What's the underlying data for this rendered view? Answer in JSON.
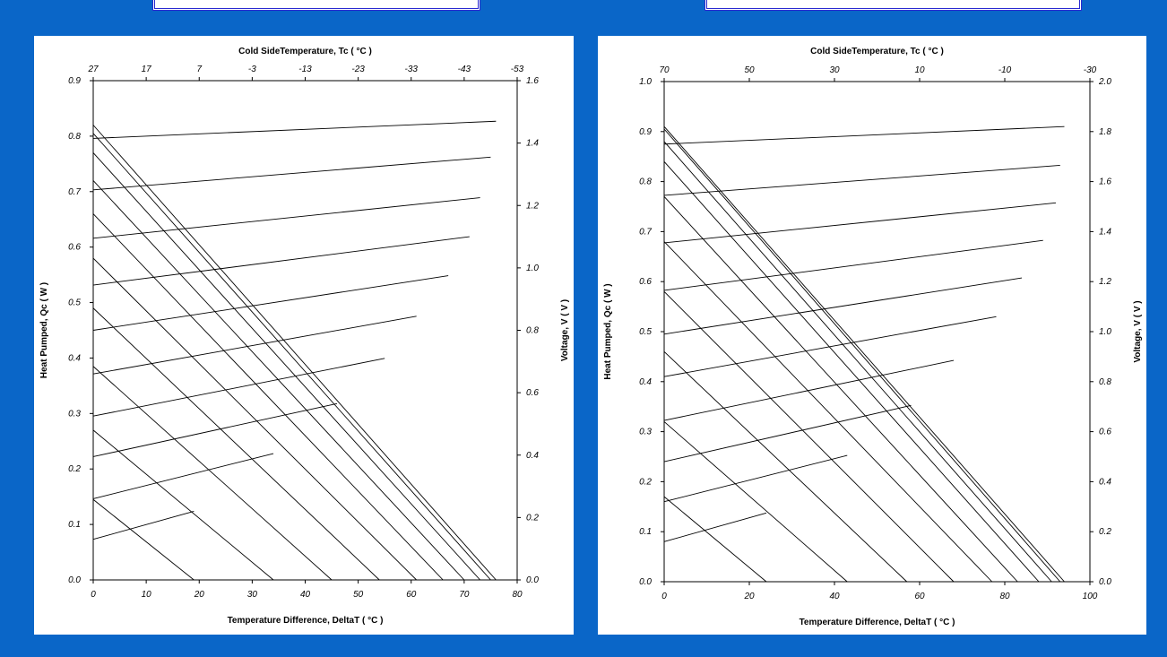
{
  "chart_data": [
    {
      "type": "line",
      "xlabel": "Temperature Difference, DeltaT ( °C )",
      "x2label": "Cold SideTemperature, Tc ( °C )",
      "ylabel": "Heat Pumped, Qc ( W )",
      "y2label": "Voltage, V ( V )",
      "xlim": [
        0,
        80
      ],
      "ylim": [
        0,
        0.9
      ],
      "y2lim": [
        0,
        1.6
      ],
      "x_ticks": [
        "0",
        "10",
        "20",
        "30",
        "40",
        "50",
        "60",
        "70",
        "80"
      ],
      "y_ticks": [
        "0.0",
        "0.1",
        "0.2",
        "0.3",
        "0.4",
        "0.5",
        "0.6",
        "0.7",
        "0.8",
        "0.9"
      ],
      "y2_ticks": [
        "0.0",
        "0.2",
        "0.4",
        "0.6",
        "0.8",
        "1.0",
        "1.2",
        "1.4",
        "1.6"
      ],
      "x2_ticks": [
        "27",
        "17",
        "7",
        "-3",
        "-13",
        "-23",
        "-33",
        "-43",
        "-53"
      ],
      "heat_lines": [
        {
          "q0": 0.145,
          "dt_max": 19
        },
        {
          "q0": 0.27,
          "dt_max": 34
        },
        {
          "q0": 0.385,
          "dt_max": 45
        },
        {
          "q0": 0.49,
          "dt_max": 54
        },
        {
          "q0": 0.58,
          "dt_max": 61
        },
        {
          "q0": 0.66,
          "dt_max": 66
        },
        {
          "q0": 0.72,
          "dt_max": 70
        },
        {
          "q0": 0.77,
          "dt_max": 73
        },
        {
          "q0": 0.805,
          "dt_max": 75
        },
        {
          "q0": 0.82,
          "dt_max": 76
        }
      ],
      "voltage_lines": [
        {
          "v0": 0.13,
          "x1": 19,
          "v1": 0.22
        },
        {
          "v0": 0.26,
          "x1": 34,
          "v1": 0.405
        },
        {
          "v0": 0.395,
          "x1": 46,
          "v1": 0.565
        },
        {
          "v0": 0.525,
          "x1": 55,
          "v1": 0.71
        },
        {
          "v0": 0.66,
          "x1": 61,
          "v1": 0.845
        },
        {
          "v0": 0.8,
          "x1": 67,
          "v1": 0.975
        },
        {
          "v0": 0.945,
          "x1": 71,
          "v1": 1.1
        },
        {
          "v0": 1.095,
          "x1": 73,
          "v1": 1.225
        },
        {
          "v0": 1.25,
          "x1": 75,
          "v1": 1.355
        },
        {
          "v0": 1.415,
          "x1": 76,
          "v1": 1.47
        }
      ]
    },
    {
      "type": "line",
      "xlabel": "Temperature Difference, DeltaT ( °C )",
      "x2label": "Cold SideTemperature, Tc ( °C )",
      "ylabel": "Heat Pumped, Qc ( W )",
      "y2label": "Voltage, V ( V )",
      "xlim": [
        0,
        100
      ],
      "ylim": [
        0,
        1.0
      ],
      "y2lim": [
        0,
        2.0
      ],
      "x_ticks": [
        "0",
        "20",
        "40",
        "60",
        "80",
        "100"
      ],
      "y_ticks": [
        "0.0",
        "0.1",
        "0.2",
        "0.3",
        "0.4",
        "0.5",
        "0.6",
        "0.7",
        "0.8",
        "0.9",
        "1.0"
      ],
      "y2_ticks": [
        "0.0",
        "0.2",
        "0.4",
        "0.6",
        "0.8",
        "1.0",
        "1.2",
        "1.4",
        "1.6",
        "1.8",
        "2.0"
      ],
      "x2_ticks": [
        "70",
        "50",
        "30",
        "10",
        "-10",
        "-30"
      ],
      "heat_lines": [
        {
          "q0": 0.17,
          "dt_max": 24
        },
        {
          "q0": 0.32,
          "dt_max": 43
        },
        {
          "q0": 0.46,
          "dt_max": 57
        },
        {
          "q0": 0.58,
          "dt_max": 68
        },
        {
          "q0": 0.68,
          "dt_max": 77
        },
        {
          "q0": 0.77,
          "dt_max": 83
        },
        {
          "q0": 0.84,
          "dt_max": 88
        },
        {
          "q0": 0.88,
          "dt_max": 91
        },
        {
          "q0": 0.905,
          "dt_max": 93
        },
        {
          "q0": 0.91,
          "dt_max": 94
        }
      ],
      "voltage_lines": [
        {
          "v0": 0.16,
          "x1": 24,
          "v1": 0.275
        },
        {
          "v0": 0.32,
          "x1": 43,
          "v1": 0.505
        },
        {
          "v0": 0.48,
          "x1": 58,
          "v1": 0.705
        },
        {
          "v0": 0.645,
          "x1": 68,
          "v1": 0.885
        },
        {
          "v0": 0.82,
          "x1": 78,
          "v1": 1.06
        },
        {
          "v0": 0.99,
          "x1": 84,
          "v1": 1.215
        },
        {
          "v0": 1.165,
          "x1": 89,
          "v1": 1.365
        },
        {
          "v0": 1.355,
          "x1": 92,
          "v1": 1.515
        },
        {
          "v0": 1.545,
          "x1": 93,
          "v1": 1.665
        },
        {
          "v0": 1.75,
          "x1": 94,
          "v1": 1.82
        }
      ]
    }
  ]
}
